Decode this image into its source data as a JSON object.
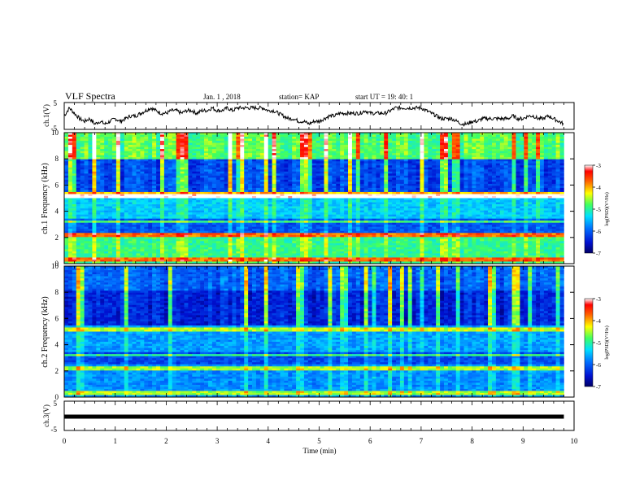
{
  "header": {
    "title": "VLF Spectra",
    "date": "Jan. 1 , 2018",
    "station": "station= KAP",
    "start": "start UT =  19: 40: 1"
  },
  "chart_data": [
    {
      "type": "line",
      "name_panel": "ch1-voltage",
      "ylabel": "ch.1(V)",
      "ylim": [
        -5,
        5
      ],
      "yticks": [
        "5",
        "-5"
      ],
      "xlim": [
        0,
        10
      ],
      "trace": {
        "x": [
          0,
          0.1,
          0.2,
          0.3,
          0.4,
          0.5,
          0.6,
          0.7,
          0.8,
          0.9,
          1.0,
          1.1,
          1.2,
          1.3,
          1.4,
          1.5,
          1.6,
          1.7,
          1.8,
          1.9,
          2.0,
          2.1,
          2.2,
          2.3,
          2.4,
          2.5,
          2.6,
          2.7,
          2.8,
          2.9,
          3.0,
          3.1,
          3.2,
          3.3,
          3.4,
          3.5,
          3.6,
          3.7,
          3.8,
          3.9,
          4.0,
          4.1,
          4.2,
          4.3,
          4.4,
          4.5,
          4.6,
          4.7,
          4.8,
          4.9,
          5.0,
          5.1,
          5.2,
          5.3,
          5.4,
          5.5,
          5.6,
          5.7,
          5.8,
          5.9,
          6.0,
          6.1,
          6.2,
          6.3,
          6.4,
          6.5,
          6.6,
          6.7,
          6.8,
          6.9,
          7.0,
          7.1,
          7.2,
          7.3,
          7.4,
          7.5,
          7.6,
          7.7,
          7.8,
          7.9,
          8.0,
          8.1,
          8.2,
          8.3,
          8.4,
          8.5,
          8.6,
          8.7,
          8.8,
          8.9,
          9.0,
          9.1,
          9.2,
          9.3,
          9.4,
          9.5,
          9.6,
          9.7,
          9.8
        ],
        "y": [
          0,
          3,
          1,
          -1,
          -2,
          -1,
          -3,
          -2,
          -3,
          -2,
          -1,
          -2,
          -1,
          0,
          0,
          1,
          2,
          3,
          2,
          1,
          1,
          2,
          2,
          1,
          2,
          2,
          1,
          2,
          2,
          3,
          2,
          2,
          3,
          2,
          3,
          3,
          3,
          3,
          3,
          3,
          2,
          2,
          1,
          0,
          -1,
          -1,
          -2,
          -2,
          -3,
          -2,
          -2,
          -1,
          0,
          0,
          1,
          1,
          1,
          1,
          1,
          2,
          1,
          1,
          1,
          1,
          2,
          3,
          3,
          3,
          3,
          3,
          3,
          2,
          1,
          0,
          -1,
          -1,
          -1,
          -2,
          -3,
          -3,
          -2,
          -2,
          -1,
          -1,
          -1,
          -1,
          -1,
          -1,
          0,
          -1,
          -1,
          0,
          0,
          -1,
          -1,
          0,
          -1,
          -2,
          -3
        ]
      }
    },
    {
      "type": "heatmap",
      "name_panel": "ch1-spectrogram",
      "ylabel": "ch.1 Frequency (kHz)",
      "xlim": [
        0,
        10
      ],
      "ylim": [
        0,
        10
      ],
      "yticks": [
        "0",
        "2",
        "4",
        "6",
        "8",
        "10"
      ],
      "colorbar": {
        "label": "log(PSD)(V²/Hz)",
        "range": [
          -7,
          -3
        ],
        "ticks": [
          "-3",
          "-4",
          "-5",
          "-6",
          "-7"
        ]
      }
    },
    {
      "type": "heatmap",
      "name_panel": "ch2-spectrogram",
      "ylabel": "ch.2 Frequency (kHz)",
      "xlim": [
        0,
        10
      ],
      "ylim": [
        0,
        10
      ],
      "yticks": [
        "0",
        "2",
        "4",
        "6",
        "8",
        "10"
      ],
      "colorbar": {
        "label": "log(PSD)(V²/Hz)",
        "range": [
          -7,
          -3
        ],
        "ticks": [
          "-3",
          "-4",
          "-5",
          "-6",
          "-7"
        ]
      }
    },
    {
      "type": "line",
      "name_panel": "ch3-voltage",
      "ylabel": "ch.3(V)",
      "ylim": [
        -5,
        5
      ],
      "yticks": [
        "5",
        "-5"
      ],
      "xlim": [
        0,
        10
      ],
      "trace": {
        "x": [
          0,
          9.8
        ],
        "y": [
          0,
          0
        ]
      }
    }
  ],
  "xaxis": {
    "label": "Time (min)",
    "ticks": [
      "0",
      "1",
      "2",
      "3",
      "4",
      "5",
      "6",
      "7",
      "8",
      "9",
      "10"
    ]
  },
  "colors": {
    "background": "#ffffff",
    "axes": "#000000",
    "trace": "#000000"
  }
}
